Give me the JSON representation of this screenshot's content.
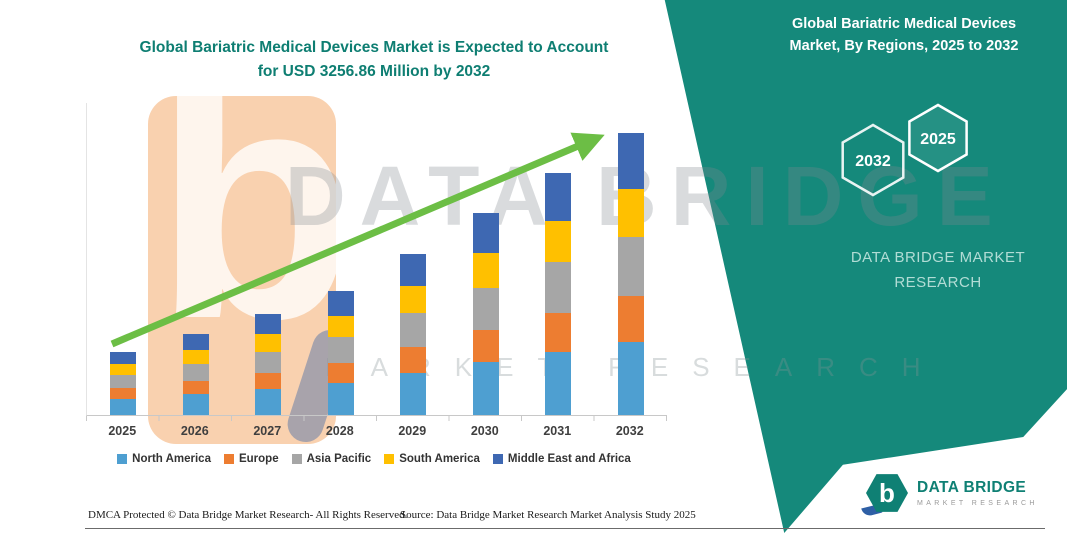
{
  "title": {
    "line1": "Global Bariatric Medical Devices Market is Expected to Account",
    "line2": "for USD 3256.86 Million by 2032"
  },
  "right_panel": {
    "title": "Global Bariatric Medical Devices Market, By Regions, 2025 to 2032",
    "hexagon_back_label": "2032",
    "hexagon_front_label": "2025",
    "brand_text": "DATA BRIDGE MARKET RESEARCH"
  },
  "watermark": {
    "line1": "DATA BRIDGE",
    "line2": "MARKET RESEARCH",
    "logo_letter": "b"
  },
  "chart_data": {
    "type": "bar",
    "stacked": true,
    "title": "Global Bariatric Medical Devices Market is Expected to Account for USD 3256.86 Million by 2032",
    "categories": [
      "2025",
      "2026",
      "2027",
      "2028",
      "2029",
      "2030",
      "2031",
      "2032"
    ],
    "series": [
      {
        "name": "North America",
        "color": "#4E9FD1",
        "values": [
          190,
          242,
          302,
          371,
          484,
          606,
          727,
          847
        ]
      },
      {
        "name": "Europe",
        "color": "#ED7D31",
        "values": [
          117,
          149,
          186,
          228,
          298,
          373,
          447,
          521
        ]
      },
      {
        "name": "Asia Pacific",
        "color": "#A6A6A6",
        "values": [
          153,
          196,
          244,
          299,
          391,
          489,
          587,
          684
        ]
      },
      {
        "name": "South America",
        "color": "#FFC000",
        "values": [
          124,
          158,
          198,
          242,
          317,
          396,
          475,
          554
        ]
      },
      {
        "name": "Middle East and Africa",
        "color": "#3E68B2",
        "values": [
          146,
          187,
          233,
          286,
          373,
          466,
          560,
          651
        ]
      }
    ],
    "totals_estimated": [
      730,
      932,
      1163,
      1426,
      1863,
      2330,
      2796,
      3257
    ],
    "unit": "USD Million",
    "xlabel": "",
    "ylabel": "",
    "ylim": [
      0,
      3600
    ],
    "grid": false,
    "legend_position": "bottom",
    "trend_arrow": true,
    "note": "values estimated from bar heights; 2032 total stated as USD 3256.86 Million"
  },
  "footer": {
    "dmca": "DMCA Protected © Data Bridge Market Research-  All Rights Reserved.",
    "source": "Source: Data Bridge Market Research  Market Analysis Study 2025"
  },
  "logo": {
    "icon_letter": "b",
    "brand": "DATA BRIDGE",
    "sub": "MARKET RESEARCH"
  },
  "colors": {
    "teal": "#15897B",
    "title_teal": "#0E7E72",
    "arrow_green": "#6CBE45",
    "logo_orange": "#F4A460",
    "logo_blue": "#2F5FA5"
  }
}
